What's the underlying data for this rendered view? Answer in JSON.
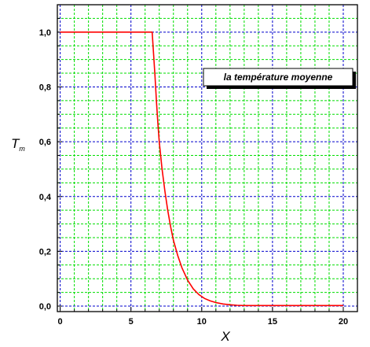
{
  "chart_data": {
    "type": "line",
    "xlabel": "X",
    "ylabel_main": "T",
    "ylabel_sub": "m",
    "xlim": [
      -0.2,
      21
    ],
    "ylim": [
      -0.02,
      1.1
    ],
    "xticks": [
      0,
      5,
      10,
      15,
      20
    ],
    "xtick_labels": [
      "0",
      "5",
      "10",
      "15",
      "20"
    ],
    "yticks": [
      0.0,
      0.2,
      0.4,
      0.6,
      0.8,
      1.0
    ],
    "ytick_labels": [
      "0,0",
      "0,2",
      "0,4",
      "0,6",
      "0,8",
      "1,0"
    ],
    "grid": true,
    "grid_colors": {
      "major": "#0000cc",
      "minor": "#00dd00"
    },
    "line_color": "#ff0000",
    "annotation": "la température moyenne",
    "series": [
      {
        "x": [
          0,
          0.5,
          1,
          1.5,
          2,
          2.5,
          3,
          3.5,
          4,
          4.5,
          5,
          5.5,
          6,
          6.3,
          6.5,
          6.6,
          6.7,
          6.8,
          6.9,
          7.0,
          7.2,
          7.4,
          7.6,
          7.8,
          8.0,
          8.3,
          8.6,
          9.0,
          9.4,
          9.8,
          10.2,
          10.6,
          11.0,
          11.5,
          12.0,
          12.5,
          13.0,
          14,
          15,
          16,
          17,
          18,
          19,
          20
        ],
        "y": [
          1,
          1,
          1,
          1,
          1,
          1,
          1,
          1,
          1,
          1,
          1,
          1,
          1,
          1,
          1,
          0.92,
          0.84,
          0.75,
          0.67,
          0.6,
          0.5,
          0.42,
          0.35,
          0.29,
          0.24,
          0.185,
          0.14,
          0.095,
          0.063,
          0.042,
          0.028,
          0.019,
          0.013,
          0.008,
          0.005,
          0.003,
          0.002,
          0.002,
          0.002,
          0.002,
          0.002,
          0.002,
          0.002,
          0.002
        ]
      }
    ]
  }
}
